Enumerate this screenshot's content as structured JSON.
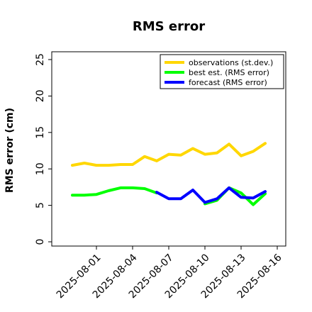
{
  "chart_data": {
    "type": "line",
    "title": "RMS error",
    "xlabel": "",
    "ylabel": "RMS error (cm)",
    "ylim": [
      0,
      26
    ],
    "yticks": [
      0,
      5,
      10,
      15,
      20,
      25
    ],
    "x": [
      "2025-07-30",
      "2025-07-31",
      "2025-08-01",
      "2025-08-02",
      "2025-08-03",
      "2025-08-04",
      "2025-08-05",
      "2025-08-06",
      "2025-08-07",
      "2025-08-08",
      "2025-08-09",
      "2025-08-10",
      "2025-08-11",
      "2025-08-12",
      "2025-08-13",
      "2025-08-14",
      "2025-08-15",
      "2025-08-16"
    ],
    "xticks": [
      "2025-08-01",
      "2025-08-04",
      "2025-08-07",
      "2025-08-10",
      "2025-08-13",
      "2025-08-16"
    ],
    "highlight_tick": "2025-08-07",
    "highlight_color": "#228B22",
    "grid": false,
    "legend_position": "top-right",
    "series": [
      {
        "name": "observations (st.dev.)",
        "color": "#FFD700",
        "values": [
          10.5,
          10.8,
          10.5,
          10.5,
          10.6,
          10.6,
          11.7,
          11.1,
          12.0,
          11.9,
          12.8,
          12.0,
          12.2,
          13.4,
          11.8,
          12.4,
          13.5,
          null
        ]
      },
      {
        "name": "best est. (RMS error)",
        "color": "#00FF00",
        "values": [
          6.4,
          6.4,
          6.5,
          7.0,
          7.4,
          7.4,
          7.3,
          6.7,
          null,
          null,
          null,
          5.2,
          5.7,
          7.4,
          6.7,
          5.1,
          6.6,
          null
        ]
      },
      {
        "name": "forecast (RMS error)",
        "color": "#0000FF",
        "values": [
          null,
          null,
          null,
          null,
          null,
          null,
          null,
          6.8,
          5.9,
          5.9,
          7.1,
          5.4,
          5.9,
          7.4,
          6.1,
          6.0,
          6.9,
          null
        ]
      }
    ]
  }
}
